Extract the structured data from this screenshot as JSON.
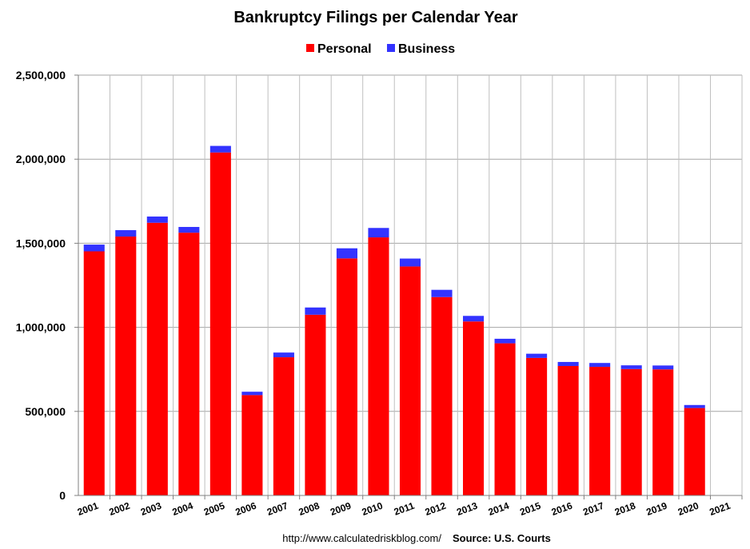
{
  "chart_data": {
    "type": "bar",
    "stacked": true,
    "title": "Bankruptcy Filings per Calendar Year",
    "legend_position": "top",
    "categories": [
      "2001",
      "2002",
      "2003",
      "2004",
      "2005",
      "2006",
      "2007",
      "2008",
      "2009",
      "2010",
      "2011",
      "2012",
      "2013",
      "2014",
      "2015",
      "2016",
      "2017",
      "2018",
      "2019",
      "2020",
      "2021"
    ],
    "series": [
      {
        "name": "Personal",
        "color": "#ff0000",
        "values": [
          1452000,
          1540000,
          1622000,
          1563000,
          2040000,
          597000,
          822000,
          1075000,
          1410000,
          1535000,
          1362000,
          1180000,
          1035000,
          905000,
          818000,
          770000,
          765000,
          752000,
          750000,
          520000,
          null
        ]
      },
      {
        "name": "Business",
        "color": "#3333ff",
        "values": [
          40000,
          38000,
          37000,
          34000,
          39000,
          20000,
          28000,
          43000,
          60000,
          56000,
          47000,
          43000,
          33000,
          27000,
          25000,
          24000,
          23000,
          22000,
          23000,
          18000,
          null
        ]
      }
    ],
    "ylim": [
      0,
      2500000
    ],
    "yticks": [
      "0",
      "500,000",
      "1,000,000",
      "1,500,000",
      "2,000,000",
      "2,500,000"
    ],
    "ytick_values": [
      0,
      500000,
      1000000,
      1500000,
      2000000,
      2500000
    ],
    "grid": true,
    "xlabel": "",
    "ylabel": ""
  },
  "footer": {
    "url": "http://www.calculatedriskblog.com/",
    "source": "Source: U.S. Courts"
  }
}
